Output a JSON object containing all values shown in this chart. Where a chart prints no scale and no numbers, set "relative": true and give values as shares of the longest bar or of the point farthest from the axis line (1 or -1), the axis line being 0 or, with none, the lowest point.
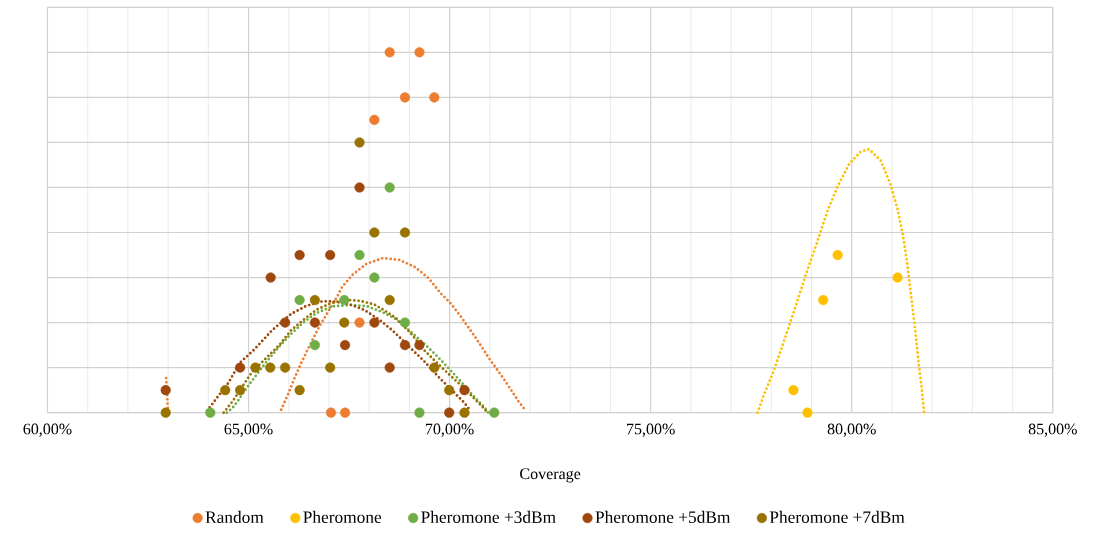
{
  "chart_data": {
    "type": "scatter",
    "xlabel": "Coverage",
    "relative": true,
    "marker": "circle",
    "grid": true,
    "legend": "bottom",
    "xlim": [
      60,
      85
    ],
    "xticks": [
      {
        "value": 60,
        "label": "60,00%"
      },
      {
        "value": 65,
        "label": "65,00%"
      },
      {
        "value": 70,
        "label": "70,00%"
      },
      {
        "value": 75,
        "label": "75,00%"
      },
      {
        "value": 80,
        "label": "80,00%"
      },
      {
        "value": 85,
        "label": "85,00%"
      }
    ],
    "series": [
      {
        "name": "Random",
        "color": "#ed7d31",
        "x": [
          67.05,
          67.4,
          67.76,
          68.13,
          68.51,
          68.89,
          69.25,
          69.62
        ],
        "values": [
          0,
          0,
          0.25,
          0.8125,
          1,
          0.875,
          1,
          0.875
        ]
      },
      {
        "name": "Pheromone",
        "color": "#ffc000",
        "x": [
          78.55,
          78.9,
          79.29,
          79.65,
          81.14
        ],
        "values": [
          0.0625,
          0,
          0.3125,
          0.4375,
          0.375
        ]
      },
      {
        "name": "Pheromone +3dBm",
        "color": "#70ad47",
        "x": [
          64.05,
          66.27,
          66.65,
          67.38,
          67.76,
          68.13,
          68.51,
          68.89,
          69.25,
          71.11
        ],
        "values": [
          0,
          0.3125,
          0.1875,
          0.3125,
          0.4375,
          0.375,
          0.625,
          0.25,
          0,
          0
        ]
      },
      {
        "name": "Pheromone +5dBm",
        "color": "#9e480e",
        "x": [
          62.94,
          64.79,
          65.55,
          65.91,
          66.27,
          66.65,
          67.03,
          67.4,
          67.76,
          68.13,
          68.51,
          68.89,
          69.25,
          69.99,
          70.37
        ],
        "values": [
          0.0625,
          0.125,
          0.375,
          0.25,
          0.4375,
          0.25,
          0.4375,
          0.1875,
          0.625,
          0.25,
          0.125,
          0.1875,
          0.1875,
          0,
          0.0625
        ]
      },
      {
        "name": "Pheromone +7dBm",
        "color": "#997300",
        "x": [
          62.94,
          64.42,
          64.79,
          65.17,
          65.54,
          65.91,
          66.27,
          66.65,
          67.03,
          67.38,
          67.76,
          68.13,
          68.51,
          68.89,
          69.62,
          69.99,
          70.37
        ],
        "values": [
          0,
          0.0625,
          0.0625,
          0.125,
          0.125,
          0.125,
          0.0625,
          0.3125,
          0.125,
          0.25,
          0.75,
          0.5,
          0.3125,
          0.5,
          0.125,
          0.0625,
          0
        ]
      },
      {
        "type": "line",
        "marker": "none",
        "line_style": "dotted",
        "color": "#ed7d31",
        "x": [
          62.95,
          63.0,
          64.5,
          65.81,
          65.98,
          66.14,
          66.31,
          66.51,
          66.76,
          67.22,
          67.32,
          67.59,
          67.93,
          68.34,
          68.75,
          69.14,
          69.47,
          69.78,
          70.03,
          70.29,
          70.66,
          71.01,
          71.37,
          71.72,
          71.86
        ],
        "values": [
          0.096,
          0,
          null,
          0.008,
          0.05,
          0.095,
          0.138,
          0.184,
          0.239,
          0.325,
          0.348,
          0.383,
          0.413,
          0.429,
          0.424,
          0.404,
          0.374,
          0.331,
          0.303,
          0.265,
          0.206,
          0.146,
          0.09,
          0.03,
          0.01
        ]
      },
      {
        "type": "line",
        "marker": "none",
        "line_style": "dotted",
        "color": "#ffc000",
        "x": [
          77.66,
          77.8,
          78.04,
          78.32,
          78.59,
          78.85,
          79.13,
          79.4,
          79.65,
          79.94,
          80.23,
          80.43,
          80.72,
          80.96,
          81.14,
          81.27,
          81.37,
          81.47,
          81.57,
          81.66,
          81.74,
          81.8
        ],
        "values": [
          0,
          0.045,
          0.11,
          0.2,
          0.29,
          0.38,
          0.47,
          0.561,
          0.628,
          0.691,
          0.725,
          0.731,
          0.7,
          0.635,
          0.565,
          0.494,
          0.423,
          0.33,
          0.239,
          0.141,
          0.068,
          0
        ]
      },
      {
        "type": "line",
        "marker": "none",
        "line_style": "dotted",
        "color": "#70ad47",
        "x": [
          64.46,
          64.6,
          64.72,
          64.86,
          65.09,
          65.23,
          65.48,
          65.77,
          66.06,
          66.35,
          66.68,
          67.09,
          67.59,
          67.96,
          68.33,
          68.66,
          69.03,
          69.37,
          69.66,
          69.95,
          70.28,
          70.57,
          70.88,
          70.96
        ],
        "values": [
          0,
          0.013,
          0.03,
          0.054,
          0.089,
          0.11,
          0.146,
          0.184,
          0.219,
          0.249,
          0.276,
          0.295,
          0.299,
          0.295,
          0.279,
          0.26,
          0.225,
          0.191,
          0.16,
          0.126,
          0.086,
          0.049,
          0.013,
          0
        ]
      },
      {
        "type": "line",
        "marker": "none",
        "line_style": "dotted",
        "color": "#9e480e",
        "x": [
          63.97,
          64.24,
          64.49,
          64.78,
          65.15,
          65.58,
          66.06,
          66.43,
          66.84,
          67.05,
          67.46,
          67.88,
          68.25,
          68.56,
          68.72,
          69.03,
          69.34,
          69.76,
          70.05,
          70.36,
          70.5
        ],
        "values": [
          0.005,
          0.045,
          0.081,
          0.138,
          0.176,
          0.228,
          0.274,
          0.296,
          0.309,
          0.309,
          0.303,
          0.285,
          0.258,
          0.23,
          0.213,
          0.179,
          0.146,
          0.095,
          0.063,
          0.028,
          0.008
        ]
      },
      {
        "type": "line",
        "marker": "none",
        "line_style": "dotted",
        "color": "#997300",
        "x": [
          64.38,
          64.6,
          64.86,
          65.09,
          65.48,
          65.77,
          66.06,
          66.35,
          66.68,
          67.09,
          67.46,
          67.79,
          68.13,
          68.36,
          68.66,
          69.03,
          69.37,
          69.66,
          69.95,
          70.28,
          70.57,
          70.88,
          70.93
        ],
        "values": [
          0,
          0.031,
          0.075,
          0.113,
          0.156,
          0.188,
          0.229,
          0.256,
          0.285,
          0.306,
          0.313,
          0.31,
          0.3,
          0.285,
          0.263,
          0.221,
          0.173,
          0.141,
          0.11,
          0.076,
          0.044,
          0.009,
          0
        ]
      }
    ]
  }
}
